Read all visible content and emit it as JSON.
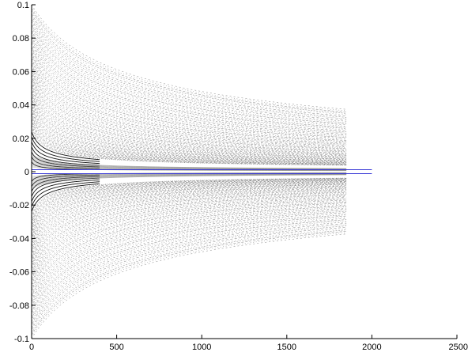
{
  "chart_data": {
    "type": "line",
    "title": "",
    "xlabel": "",
    "ylabel": "",
    "xlim": [
      0,
      2500
    ],
    "ylim": [
      -0.1,
      0.1
    ],
    "grid": false,
    "legend": "none",
    "x_ticks": [
      0,
      500,
      1000,
      1500,
      2000,
      2500
    ],
    "x_tick_labels": [
      "0",
      "500",
      "1000",
      "1500",
      "2000",
      "2500"
    ],
    "y_ticks": [
      0.1,
      0.08,
      0.06,
      0.04,
      0.02,
      0,
      -0.02,
      -0.04,
      -0.06,
      -0.08,
      -0.1
    ],
    "y_tick_labels": [
      "0.1",
      "0.08",
      "0.06",
      "0.04",
      "0.02",
      "0",
      "-0.02",
      "-0.04",
      "-0.06",
      "-0.08",
      "-0.1"
    ],
    "curve_family": {
      "description_form": "y = ±A / sqrt(1 + x/s)",
      "x_range": [
        0,
        1850
      ],
      "bold_curves": [
        {
          "amplitude": 0.024,
          "scale": 40,
          "x_end": 400
        },
        {
          "amplitude": 0.021,
          "scale": 36,
          "x_end": 400
        },
        {
          "amplitude": 0.018,
          "scale": 32,
          "x_end": 400
        },
        {
          "amplitude": 0.015,
          "scale": 28,
          "x_end": 400
        },
        {
          "amplitude": 0.012,
          "scale": 24,
          "x_end": 400
        },
        {
          "amplitude": 0.009,
          "scale": 20,
          "x_end": 400
        },
        {
          "amplitude": 0.006,
          "scale": 16,
          "x_end": 400
        }
      ],
      "amplitude_range": [
        0.026,
        0.1
      ],
      "light_curve_count": 68
    },
    "series": [
      {
        "style": "blue-line",
        "color": "#3a3ad6",
        "x": [
          0,
          2000
        ],
        "y": [
          0.0012,
          0.0012
        ]
      },
      {
        "style": "blue-line",
        "color": "#3a3ad6",
        "x": [
          0,
          2000
        ],
        "y": [
          -0.0012,
          -0.0012
        ]
      }
    ],
    "colors": {
      "dense_curves": "#444444",
      "blue_lines": "#3a3ad6",
      "axes": "#000000"
    }
  }
}
